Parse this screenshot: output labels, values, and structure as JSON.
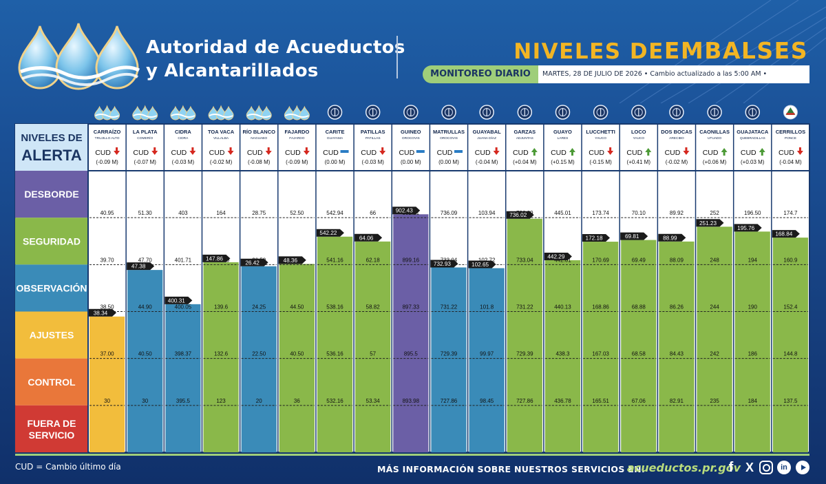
{
  "org": {
    "line1": "Autoridad de Acueductos",
    "line2": "y Alcantarillados"
  },
  "title": {
    "light": "NIVELES DE ",
    "strong": "EMBALSES"
  },
  "monitor_label": "MONITOREO DIARIO",
  "date_info": "MARTES, 28 DE JULIO DE 2026 • Cambio actualizado a las 5:00 AM •",
  "colors": {
    "desborde": "#6b5fa6",
    "seguridad": "#8ab84a",
    "observacion": "#3a8bb8",
    "ajustes": "#f2bd3c",
    "control": "#e9773a",
    "fuera": "#d03a34",
    "header_bg": "#cfe6f7"
  },
  "chart_data": {
    "type": "bar",
    "alert_header": {
      "line1": "NIVELES DE",
      "line2": "ALERTA"
    },
    "levels": [
      {
        "key": "desborde",
        "lines": [
          "DESBORDE"
        ]
      },
      {
        "key": "seguridad",
        "lines": [
          "SEGURIDAD"
        ]
      },
      {
        "key": "observacion",
        "lines": [
          "OBSERVACIÓN"
        ]
      },
      {
        "key": "ajustes",
        "lines": [
          "AJUSTES"
        ]
      },
      {
        "key": "control",
        "lines": [
          "CONTROL"
        ]
      },
      {
        "key": "fuera",
        "lines": [
          "FUERA DE",
          "SERVICIO"
        ]
      }
    ],
    "cud_label": "CUD",
    "reservoirs": [
      {
        "name": "CARRAÍZO",
        "town": "TRUJILLO ALTO",
        "icon": "aaa-logo-icon",
        "trend": "down",
        "change": "(-0.09 M)",
        "level": 38.34,
        "status": "ajustes",
        "thresholds": [
          "40.95",
          "39.70",
          "38.50",
          "37.00",
          "30"
        ]
      },
      {
        "name": "LA PLATA",
        "town": "COMERÍO",
        "icon": "aaa-logo-icon",
        "trend": "down",
        "change": "(-0.07 M)",
        "level": 47.38,
        "status": "observacion",
        "thresholds": [
          "51.30",
          "47.70",
          "44.90",
          "40.50",
          "30"
        ]
      },
      {
        "name": "CIDRA",
        "town": "CIDRA",
        "icon": "aaa-logo-icon",
        "trend": "down",
        "change": "(-0.03 M)",
        "level": 400.31,
        "status": "observacion",
        "thresholds": [
          "403",
          "401.71",
          "400.05",
          "398.37",
          "395.5"
        ]
      },
      {
        "name": "TOA VACA",
        "town": "VILLALBA",
        "icon": "aaa-logo-icon",
        "trend": "down",
        "change": "(-0.02 M)",
        "level": 147.86,
        "status": "seguridad",
        "thresholds": [
          "164",
          "147.00",
          "139.6",
          "132.6",
          "123"
        ]
      },
      {
        "name": "RÍO BLANCO",
        "town": "NAGUABO",
        "icon": "aaa-logo-icon",
        "trend": "down",
        "change": "(-0.08 M)",
        "level": 26.42,
        "status": "observacion",
        "thresholds": [
          "28.75",
          "26.50",
          "24.25",
          "22.50",
          "20"
        ]
      },
      {
        "name": "FAJARDO",
        "town": "FAJARDO",
        "icon": "aaa-logo-icon",
        "trend": "down",
        "change": "(-0.09 M)",
        "level": 48.36,
        "status": "seguridad",
        "thresholds": [
          "52.50",
          "48.30",
          "44.50",
          "40.50",
          "36"
        ]
      },
      {
        "name": "CARITE",
        "town": "GUAYAMA",
        "icon": "aee-seal-icon",
        "trend": "flat",
        "change": "(0.00 M)",
        "level": 542.22,
        "status": "seguridad",
        "thresholds": [
          "542.94",
          "541.16",
          "538.16",
          "536.16",
          "532.16"
        ]
      },
      {
        "name": "PATILLAS",
        "town": "PATILLAS",
        "icon": "aee-seal-icon",
        "trend": "down",
        "change": "(-0.03 M)",
        "level": 64.06,
        "status": "seguridad",
        "thresholds": [
          "66",
          "62.18",
          "58.82",
          "57",
          "53.34"
        ]
      },
      {
        "name": "GUINEO",
        "town": "OROCOVIS",
        "icon": "aee-seal-icon",
        "trend": "flat",
        "change": "(0.00 M)",
        "level": 902.43,
        "status": "desborde",
        "thresholds": [
          "902.21",
          "899.16",
          "897.33",
          "895.5",
          "893.98"
        ]
      },
      {
        "name": "MATRULLAS",
        "town": "OROCOVIS",
        "icon": "aee-seal-icon",
        "trend": "flat",
        "change": "(0.00 M)",
        "level": 732.93,
        "status": "observacion",
        "thresholds": [
          "736.09",
          "733.04",
          "731.22",
          "729.39",
          "727.86"
        ]
      },
      {
        "name": "GUAYABAL",
        "town": "JUANA DÍAZ",
        "icon": "aee-seal-icon",
        "trend": "down",
        "change": "(-0.04 M)",
        "level": 102.65,
        "status": "observacion",
        "thresholds": [
          "103.94",
          "102.72",
          "101.8",
          "99.97",
          "98.45"
        ]
      },
      {
        "name": "GARZAS",
        "town": "ADJUNTAS",
        "icon": "aee-seal-icon",
        "trend": "up",
        "change": "(+0.04 M)",
        "level": 736.02,
        "status": "seguridad",
        "thresholds": [
          "736.09",
          "733.04",
          "731.22",
          "729.39",
          "727.86"
        ]
      },
      {
        "name": "GUAYO",
        "town": "LARES",
        "icon": "aee-seal-icon",
        "trend": "up",
        "change": "(+0.15 M)",
        "level": 442.29,
        "status": "seguridad",
        "thresholds": [
          "445.01",
          "442.01",
          "440.13",
          "438.3",
          "436.78"
        ]
      },
      {
        "name": "LUCCHETTI",
        "town": "YAUCO",
        "icon": "aee-seal-icon",
        "trend": "down",
        "change": "(-0.15 M)",
        "level": 172.18,
        "status": "seguridad",
        "thresholds": [
          "173.74",
          "170.69",
          "168.86",
          "167.03",
          "165.51"
        ]
      },
      {
        "name": "LOCO",
        "town": "YAUCO",
        "icon": "aee-seal-icon",
        "trend": "up",
        "change": "(+0.41 M)",
        "level": 69.81,
        "status": "seguridad",
        "thresholds": [
          "70.10",
          "69.49",
          "68.88",
          "68.58",
          "67.06"
        ]
      },
      {
        "name": "DOS BOCAS",
        "town": "ARECIBO",
        "icon": "aee-seal-icon",
        "trend": "down",
        "change": "(-0.02 M)",
        "level": 88.99,
        "status": "seguridad",
        "thresholds": [
          "89.92",
          "88.09",
          "86.26",
          "84.43",
          "82.91"
        ]
      },
      {
        "name": "CAONILLAS",
        "town": "UTUADO",
        "icon": "aee-seal-icon",
        "trend": "up",
        "change": "(+0.06 M)",
        "level": 251.23,
        "status": "seguridad",
        "thresholds": [
          "252",
          "248",
          "244",
          "242",
          "235"
        ]
      },
      {
        "name": "GUAJATACA",
        "town": "QUEBRADILLAS",
        "icon": "aee-seal-icon",
        "trend": "up",
        "change": "(+0.03 M)",
        "level": 195.76,
        "status": "seguridad",
        "thresholds": [
          "196.50",
          "194",
          "190",
          "186",
          "184"
        ]
      },
      {
        "name": "CERRILLOS",
        "town": "PONCE",
        "icon": "usace-icon",
        "trend": "down",
        "change": "(-0.04 M)",
        "level": 168.84,
        "status": "seguridad",
        "thresholds": [
          "174.7",
          "160.9",
          "152.4",
          "144.8",
          "137.5"
        ]
      }
    ]
  },
  "footer": {
    "cud_note": "CUD = Cambio último día",
    "more_info": "MÁS INFORMACIÓN SOBRE NUESTROS SERVICIOS EN:",
    "site": "acueductos.pr.gov",
    "social": [
      {
        "icon": "facebook-icon",
        "glyph": "f"
      },
      {
        "icon": "x-icon",
        "glyph": "X"
      },
      {
        "icon": "instagram-icon",
        "glyph": ""
      },
      {
        "icon": "linkedin-icon",
        "glyph": "in"
      },
      {
        "icon": "youtube-icon",
        "glyph": ""
      }
    ]
  }
}
